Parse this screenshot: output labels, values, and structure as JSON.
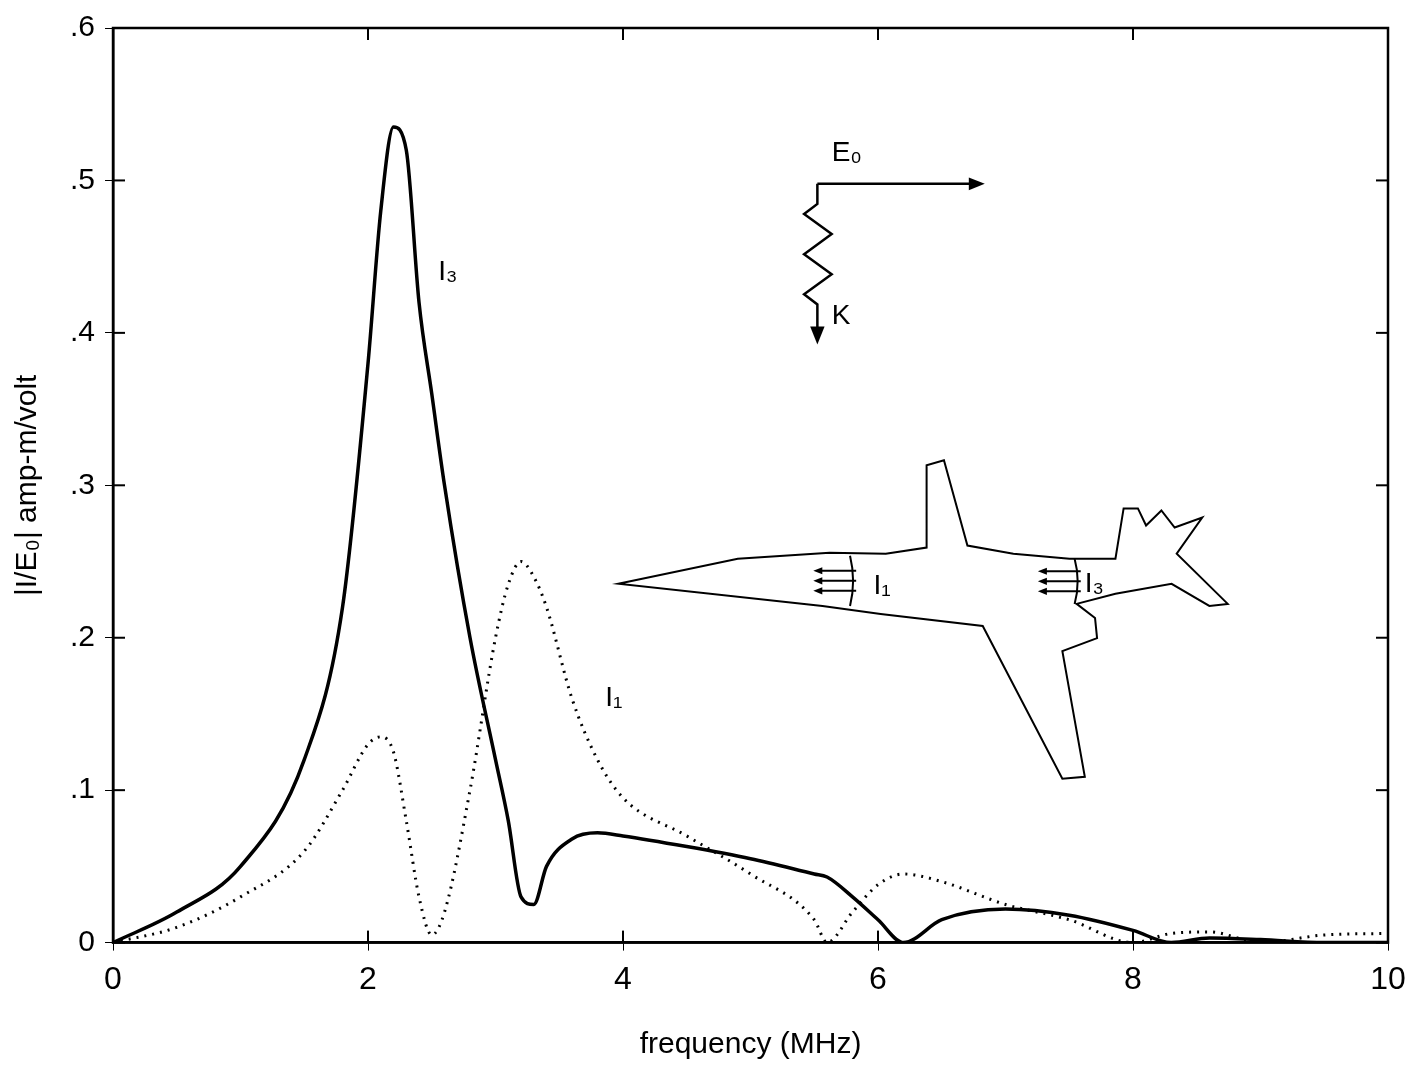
{
  "chart_data": {
    "type": "line",
    "x_label": "frequency (MHz)",
    "y_label": "|I/E₀| amp-m/volt",
    "x": [
      0,
      0.5,
      1,
      1.5,
      1.8,
      2.0,
      2.1,
      2.2,
      2.3,
      2.4,
      2.5,
      2.6,
      2.8,
      3.0,
      3.1,
      3.2,
      3.3,
      3.4,
      3.6,
      3.8,
      4.0,
      4.5,
      5.0,
      5.5,
      5.6,
      5.8,
      6.0,
      6.2,
      6.5,
      7.0,
      7.5,
      8.0,
      8.3,
      8.6,
      9.0,
      9.5,
      10
    ],
    "series": [
      {
        "name": "I₃",
        "color": "#000000",
        "line_style": "solid",
        "values": [
          0,
          0.02,
          0.05,
          0.12,
          0.22,
          0.38,
          0.48,
          0.535,
          0.52,
          0.42,
          0.36,
          0.3,
          0.2,
          0.12,
          0.08,
          0.03,
          0.025,
          0.05,
          0.068,
          0.072,
          0.07,
          0.063,
          0.055,
          0.045,
          0.043,
          0.03,
          0.015,
          0,
          0.015,
          0.022,
          0.018,
          0.008,
          0,
          0.003,
          0.002,
          0,
          0
        ]
      },
      {
        "name": "I₁",
        "color": "#000000",
        "line_style": "dotted",
        "values": [
          0,
          0.01,
          0.03,
          0.06,
          0.1,
          0.13,
          0.135,
          0.125,
          0.08,
          0.03,
          0.005,
          0.02,
          0.1,
          0.2,
          0.235,
          0.25,
          0.24,
          0.22,
          0.16,
          0.12,
          0.095,
          0.07,
          0.045,
          0.015,
          0,
          0.02,
          0.038,
          0.045,
          0.04,
          0.025,
          0.015,
          0,
          0.006,
          0.007,
          0,
          0.005,
          0.006
        ]
      }
    ],
    "annotations": [
      {
        "text": "I₃",
        "x": 2.55,
        "y": 0.44
      },
      {
        "text": "I₁",
        "x": 3.86,
        "y": 0.16
      }
    ],
    "inset": {
      "field_label": "E₀",
      "direction_label": "K",
      "current_labels": [
        "I₁",
        "I₃"
      ]
    },
    "xlim": [
      0,
      10
    ],
    "xticks": [
      0,
      2,
      4,
      6,
      8,
      10
    ],
    "ylim": [
      0,
      0.6
    ],
    "yticks": [
      {
        "value": 0,
        "label": "0"
      },
      {
        "value": 0.1,
        "label": ".1"
      },
      {
        "value": 0.2,
        "label": ".2"
      },
      {
        "value": 0.3,
        "label": ".3"
      },
      {
        "value": 0.4,
        "label": ".4"
      },
      {
        "value": 0.5,
        "label": ".5"
      },
      {
        "value": 0.6,
        "label": ".6"
      }
    ],
    "grid": false,
    "legend": "none"
  }
}
